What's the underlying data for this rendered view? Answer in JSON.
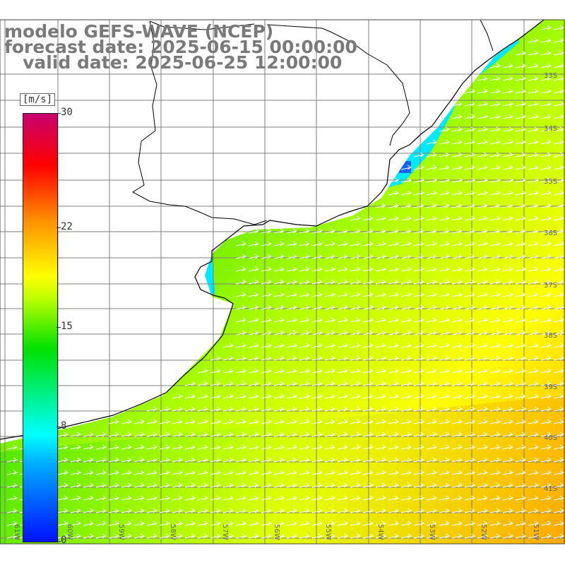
{
  "title": {
    "line1": "modelo GEFS-WAVE (NCEP)",
    "line2": "forecast date: 2025-06-15 00:00:00",
    "line3": "   valid date: 2025-06-25 12:00:00"
  },
  "colorbar": {
    "unit": "[m/s]",
    "ticks": [
      "30",
      "22",
      "15",
      "8",
      "0"
    ],
    "tick_values": [
      30,
      22,
      15,
      8,
      0
    ]
  },
  "map": {
    "lat_labels": [
      "33S",
      "34S",
      "35S",
      "36S",
      "37S",
      "38S",
      "39S",
      "40S",
      "41S"
    ],
    "lon_labels": [
      "61W",
      "60W",
      "59W",
      "58W",
      "57W",
      "56W",
      "55W",
      "54W",
      "53W",
      "52W",
      "51W"
    ],
    "colors": {
      "ocean_low": "#00ffff",
      "ocean_mid": "#33e000",
      "ocean_high": "#ffff00",
      "ocean_max": "#ffa000",
      "land": "#ffffff",
      "grid": "#7f7f7f",
      "coast": "#000000",
      "arrows": "#ffffff"
    }
  }
}
